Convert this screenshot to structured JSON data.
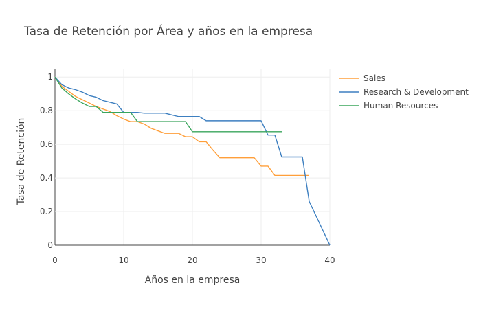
{
  "chart_data": {
    "type": "line",
    "title": "Tasa de Retención por Área y años en la empresa",
    "xlabel": "Años en la empresa",
    "ylabel": "Tasa de Retención",
    "xlim": [
      0,
      40
    ],
    "ylim": [
      0,
      1.05
    ],
    "x_ticks": [
      "0",
      "10",
      "20",
      "30",
      "40"
    ],
    "y_ticks": [
      "0",
      "0.2",
      "0.4",
      "0.6",
      "0.8",
      "1"
    ],
    "grid": true,
    "legend_position": "top-right",
    "series": [
      {
        "name": "Sales",
        "color": "#ff9f3a",
        "x": [
          0,
          1,
          2,
          3,
          4,
          5,
          6,
          7,
          8,
          9,
          10,
          11,
          12,
          13,
          14,
          15,
          16,
          17,
          18,
          19,
          20,
          21,
          22,
          23,
          24,
          25,
          26,
          27,
          28,
          29,
          30,
          31,
          32,
          33,
          34,
          35,
          36,
          37
        ],
        "y": [
          1.0,
          0.945,
          0.915,
          0.885,
          0.865,
          0.845,
          0.825,
          0.81,
          0.795,
          0.77,
          0.75,
          0.735,
          0.735,
          0.72,
          0.695,
          0.68,
          0.665,
          0.665,
          0.665,
          0.645,
          0.645,
          0.615,
          0.615,
          0.565,
          0.52,
          0.52,
          0.52,
          0.52,
          0.52,
          0.52,
          0.47,
          0.47,
          0.415,
          0.415,
          0.415,
          0.415,
          0.415,
          0.415
        ]
      },
      {
        "name": "Research & Development",
        "color": "#3d7fc0",
        "x": [
          0,
          1,
          2,
          3,
          4,
          5,
          6,
          7,
          8,
          9,
          10,
          11,
          12,
          13,
          14,
          15,
          16,
          17,
          18,
          19,
          20,
          21,
          22,
          23,
          24,
          25,
          26,
          27,
          28,
          29,
          30,
          31,
          32,
          33,
          34,
          35,
          36,
          37,
          40
        ],
        "y": [
          1.0,
          0.955,
          0.935,
          0.925,
          0.91,
          0.89,
          0.88,
          0.86,
          0.85,
          0.84,
          0.79,
          0.79,
          0.79,
          0.785,
          0.785,
          0.785,
          0.785,
          0.775,
          0.765,
          0.765,
          0.765,
          0.765,
          0.74,
          0.74,
          0.74,
          0.74,
          0.74,
          0.74,
          0.74,
          0.74,
          0.74,
          0.655,
          0.655,
          0.525,
          0.525,
          0.525,
          0.525,
          0.26,
          0.0
        ]
      },
      {
        "name": "Human Resources",
        "color": "#3aa55c",
        "x": [
          0,
          1,
          2,
          3,
          4,
          5,
          6,
          7,
          8,
          9,
          10,
          11,
          12,
          13,
          14,
          15,
          16,
          17,
          18,
          19,
          20,
          21,
          22,
          23,
          24,
          25,
          26,
          27,
          28,
          29,
          30,
          31,
          32,
          33
        ],
        "y": [
          1.0,
          0.935,
          0.9,
          0.87,
          0.845,
          0.825,
          0.825,
          0.79,
          0.79,
          0.79,
          0.79,
          0.79,
          0.735,
          0.735,
          0.735,
          0.735,
          0.735,
          0.735,
          0.735,
          0.735,
          0.675,
          0.675,
          0.675,
          0.675,
          0.675,
          0.675,
          0.675,
          0.675,
          0.675,
          0.675,
          0.675,
          0.675,
          0.675,
          0.675
        ]
      }
    ]
  }
}
